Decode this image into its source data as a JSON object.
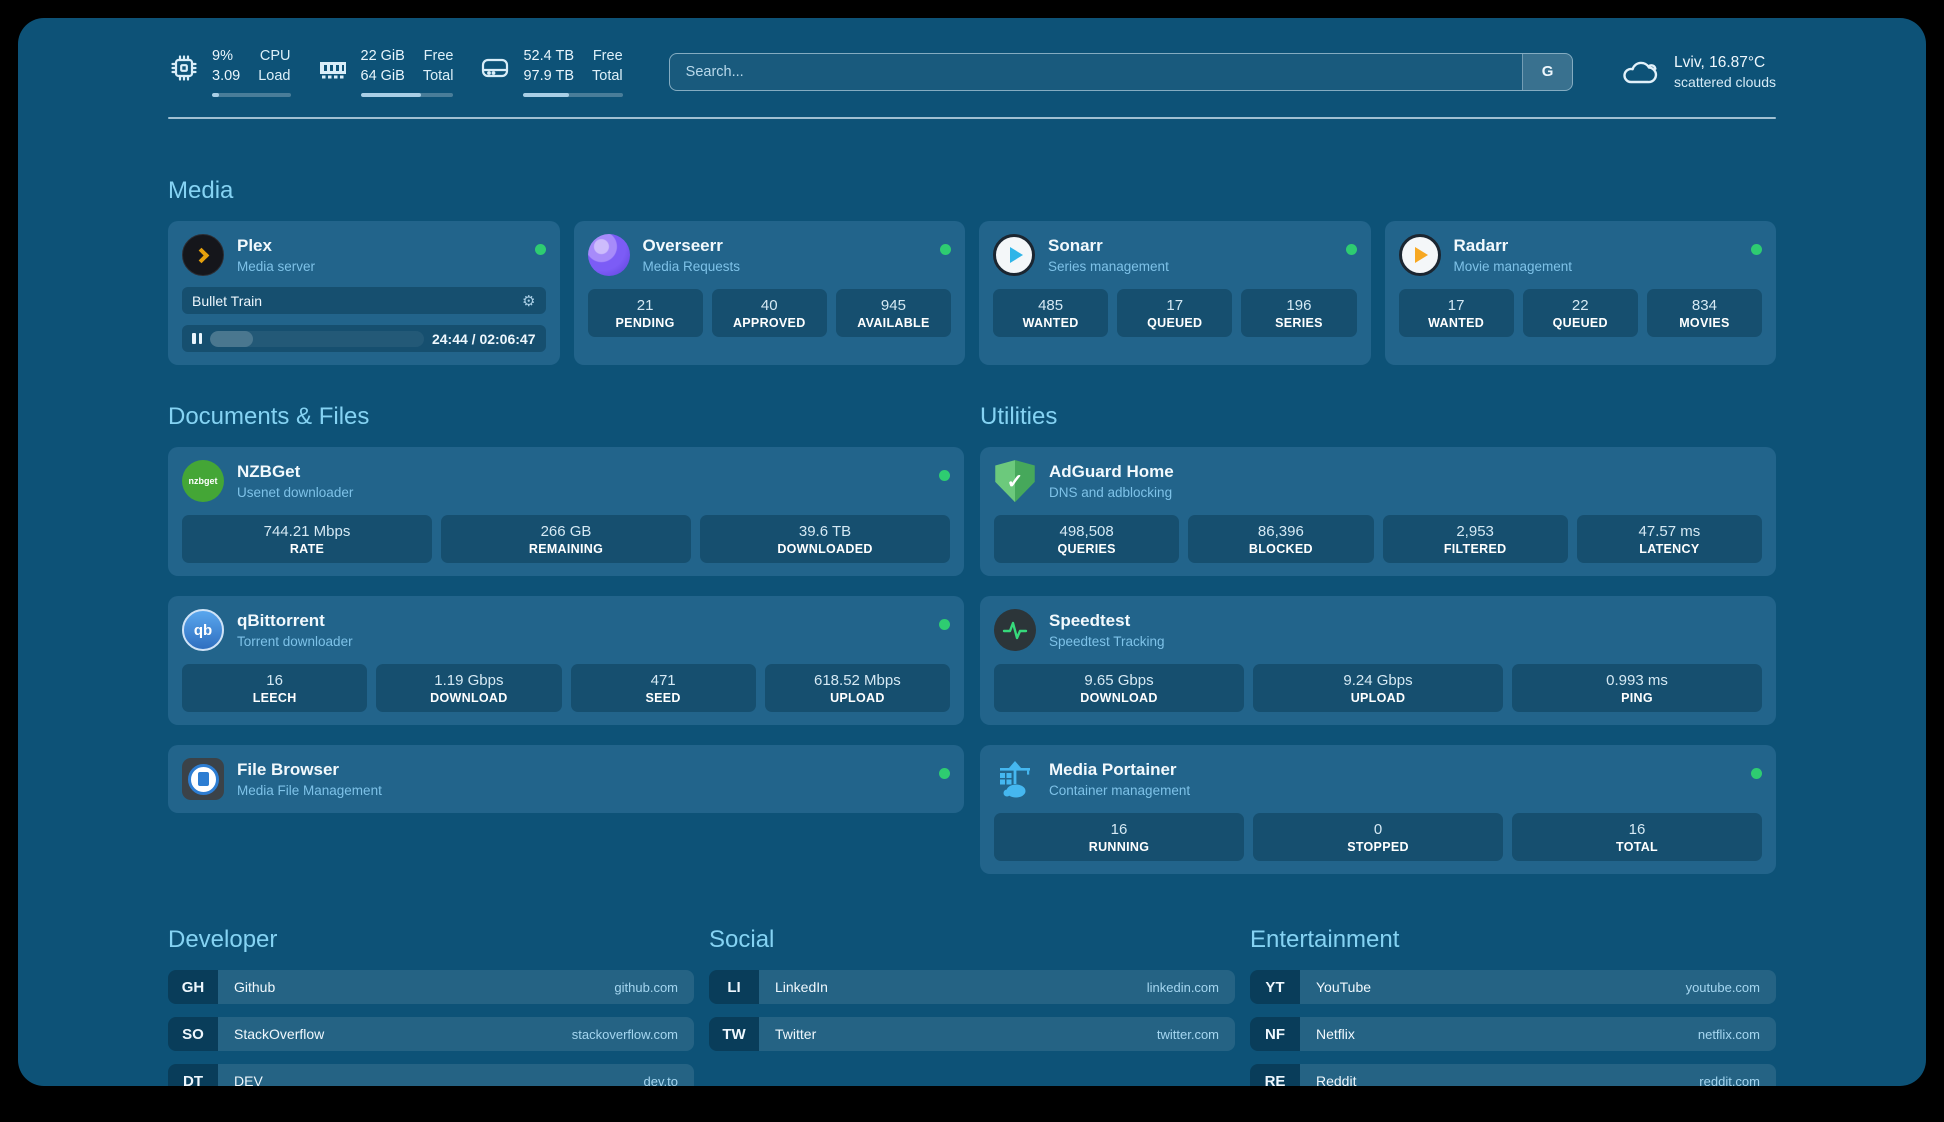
{
  "colors": {
    "page_background": "#0d5277",
    "card_background": "#22648b",
    "accent_text": "#85d3f3",
    "status_online": "#2ecc71",
    "plex_orange": "#e5a00d"
  },
  "topbar": {
    "cpu": {
      "values": [
        "9%",
        "3.09"
      ],
      "labels": [
        "CPU",
        "Load"
      ],
      "progress": 9
    },
    "ram": {
      "values": [
        "22 GiB",
        "64 GiB"
      ],
      "labels": [
        "Free",
        "Total"
      ],
      "progress": 65
    },
    "disk": {
      "values": [
        "52.4 TB",
        "97.9 TB"
      ],
      "labels": [
        "Free",
        "Total"
      ],
      "progress": 46
    },
    "search": {
      "placeholder": "Search...",
      "button_label": "G"
    },
    "weather": {
      "line1": "Lviv, 16.87°C",
      "line2": "scattered clouds"
    }
  },
  "sections": {
    "media": {
      "title": "Media",
      "cards": [
        {
          "name": "Plex",
          "desc": "Media server",
          "status": "online",
          "now_playing": "Bullet Train",
          "time": "24:44 / 02:06:47",
          "progress": 20
        },
        {
          "name": "Overseerr",
          "desc": "Media Requests",
          "status": "online",
          "stats": [
            {
              "value": "21",
              "label": "PENDING"
            },
            {
              "value": "40",
              "label": "APPROVED"
            },
            {
              "value": "945",
              "label": "AVAILABLE"
            }
          ]
        },
        {
          "name": "Sonarr",
          "desc": "Series management",
          "status": "online",
          "stats": [
            {
              "value": "485",
              "label": "WANTED"
            },
            {
              "value": "17",
              "label": "QUEUED"
            },
            {
              "value": "196",
              "label": "SERIES"
            }
          ]
        },
        {
          "name": "Radarr",
          "desc": "Movie management",
          "status": "online",
          "stats": [
            {
              "value": "17",
              "label": "WANTED"
            },
            {
              "value": "22",
              "label": "QUEUED"
            },
            {
              "value": "834",
              "label": "MOVIES"
            }
          ]
        }
      ]
    },
    "documents": {
      "title": "Documents & Files",
      "cards": [
        {
          "name": "NZBGet",
          "desc": "Usenet downloader",
          "status": "online",
          "icon_text": "nzbget",
          "stats": [
            {
              "value": "744.21 Mbps",
              "label": "RATE"
            },
            {
              "value": "266 GB",
              "label": "REMAINING"
            },
            {
              "value": "39.6 TB",
              "label": "DOWNLOADED"
            }
          ]
        },
        {
          "name": "qBittorrent",
          "desc": "Torrent downloader",
          "status": "online",
          "icon_text": "qb",
          "stats": [
            {
              "value": "16",
              "label": "LEECH"
            },
            {
              "value": "1.19 Gbps",
              "label": "DOWNLOAD"
            },
            {
              "value": "471",
              "label": "SEED"
            },
            {
              "value": "618.52 Mbps",
              "label": "UPLOAD"
            }
          ]
        },
        {
          "name": "File Browser",
          "desc": "Media File Management",
          "status": "online"
        }
      ]
    },
    "utilities": {
      "title": "Utilities",
      "cards": [
        {
          "name": "AdGuard Home",
          "desc": "DNS and adblocking",
          "icon_text": "✓",
          "stats": [
            {
              "value": "498,508",
              "label": "QUERIES"
            },
            {
              "value": "86,396",
              "label": "BLOCKED"
            },
            {
              "value": "2,953",
              "label": "FILTERED"
            },
            {
              "value": "47.57 ms",
              "label": "LATENCY"
            }
          ]
        },
        {
          "name": "Speedtest",
          "desc": "Speedtest Tracking",
          "stats": [
            {
              "value": "9.65 Gbps",
              "label": "DOWNLOAD"
            },
            {
              "value": "9.24 Gbps",
              "label": "UPLOAD"
            },
            {
              "value": "0.993 ms",
              "label": "PING"
            }
          ]
        },
        {
          "name": "Media Portainer",
          "desc": "Container management",
          "status": "online",
          "stats": [
            {
              "value": "16",
              "label": "RUNNING"
            },
            {
              "value": "0",
              "label": "STOPPED"
            },
            {
              "value": "16",
              "label": "TOTAL"
            }
          ]
        }
      ]
    }
  },
  "bookmarks": {
    "developer": {
      "title": "Developer",
      "links": [
        {
          "abbr": "GH",
          "name": "Github",
          "url": "github.com"
        },
        {
          "abbr": "SO",
          "name": "StackOverflow",
          "url": "stackoverflow.com"
        },
        {
          "abbr": "DT",
          "name": "DEV",
          "url": "dev.to"
        }
      ]
    },
    "social": {
      "title": "Social",
      "links": [
        {
          "abbr": "LI",
          "name": "LinkedIn",
          "url": "linkedin.com"
        },
        {
          "abbr": "TW",
          "name": "Twitter",
          "url": "twitter.com"
        }
      ]
    },
    "entertainment": {
      "title": "Entertainment",
      "links": [
        {
          "abbr": "YT",
          "name": "YouTube",
          "url": "youtube.com"
        },
        {
          "abbr": "NF",
          "name": "Netflix",
          "url": "netflix.com"
        },
        {
          "abbr": "RE",
          "name": "Reddit",
          "url": "reddit.com"
        }
      ]
    }
  }
}
